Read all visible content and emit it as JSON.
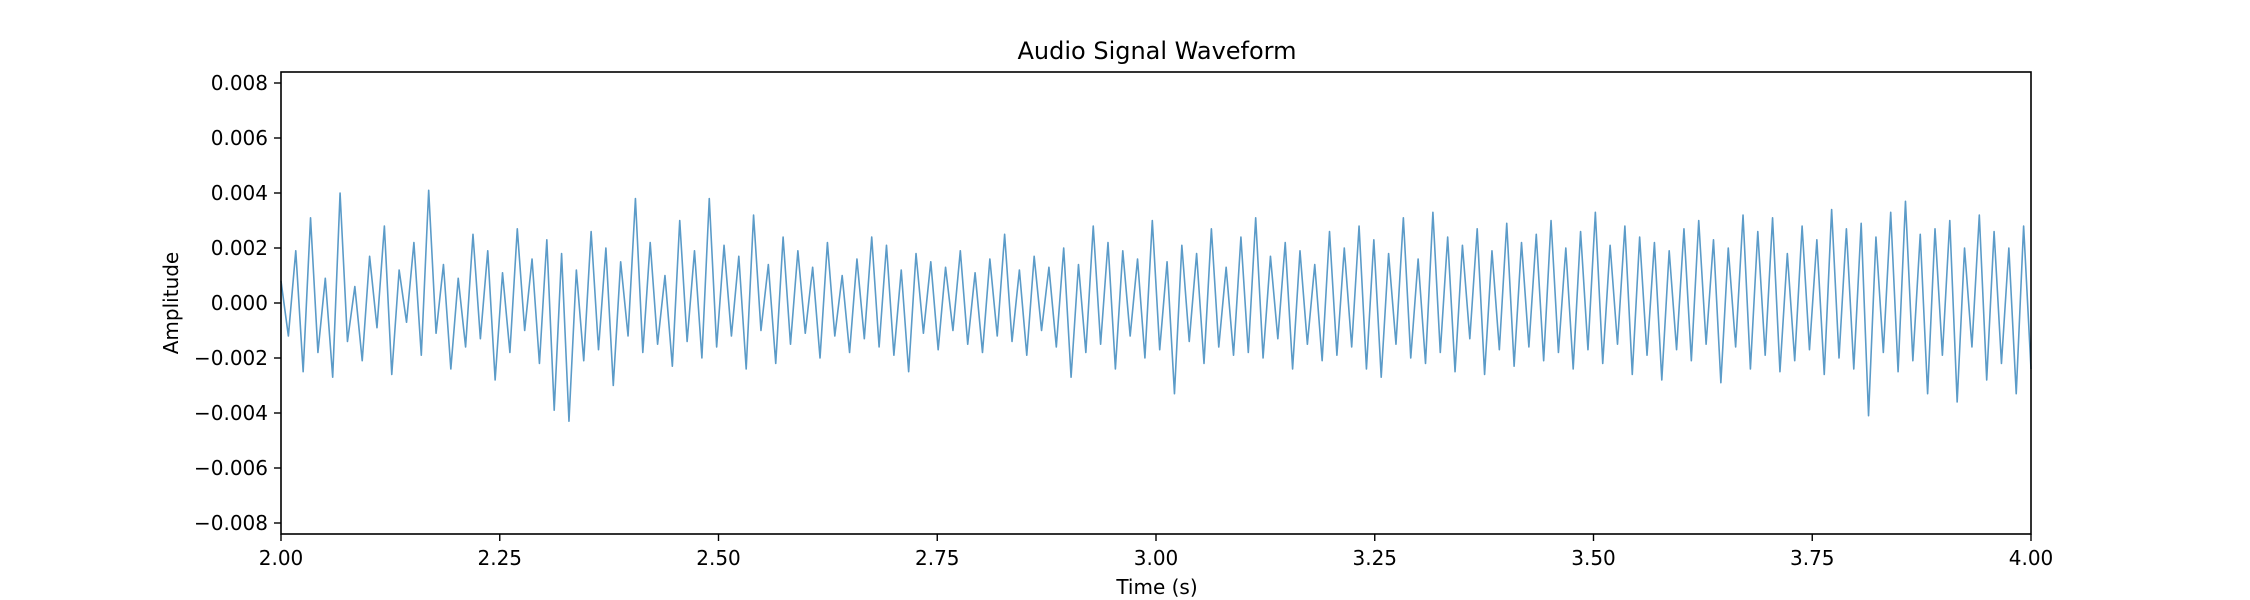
{
  "chart_data": {
    "type": "line",
    "title": "Audio Signal Waveform",
    "xlabel": "Time (s)",
    "ylabel": "Amplitude",
    "xlim": [
      2.0,
      4.0
    ],
    "ylim": [
      -0.0084,
      0.0084
    ],
    "grid": false,
    "legend": "none",
    "x_ticks": [
      2.0,
      2.25,
      2.5,
      2.75,
      3.0,
      3.25,
      3.5,
      3.75,
      4.0
    ],
    "x_tick_labels": [
      "2.00",
      "2.25",
      "2.50",
      "2.75",
      "3.00",
      "3.25",
      "3.50",
      "3.75",
      "4.00"
    ],
    "y_ticks": [
      0.008,
      0.006,
      0.004,
      0.002,
      0.0,
      -0.002,
      -0.004,
      -0.006,
      -0.008
    ],
    "y_tick_labels": [
      "0.008",
      "0.006",
      "0.004",
      "0.002",
      "0.000",
      "−0.002",
      "−0.004",
      "−0.006",
      "−0.008"
    ],
    "series": [
      {
        "color": "#5b9bc8",
        "x_start": 2.0,
        "x_end": 4.0,
        "values": [
          0.0008,
          -0.0012,
          0.0019,
          -0.0025,
          0.0031,
          -0.0018,
          0.0009,
          -0.0027,
          0.004,
          -0.0014,
          0.0006,
          -0.0021,
          0.0017,
          -0.0009,
          0.0028,
          -0.0026,
          0.0012,
          -0.0007,
          0.0022,
          -0.0019,
          0.0041,
          -0.0011,
          0.0014,
          -0.0024,
          0.0009,
          -0.0016,
          0.0025,
          -0.0013,
          0.0019,
          -0.0028,
          0.0011,
          -0.0018,
          0.0027,
          -0.001,
          0.0016,
          -0.0022,
          0.0023,
          -0.0039,
          0.0018,
          -0.0043,
          0.0012,
          -0.0021,
          0.0026,
          -0.0017,
          0.002,
          -0.003,
          0.0015,
          -0.0012,
          0.0038,
          -0.0018,
          0.0022,
          -0.0015,
          0.001,
          -0.0023,
          0.003,
          -0.0014,
          0.0019,
          -0.002,
          0.0038,
          -0.0016,
          0.0021,
          -0.0012,
          0.0017,
          -0.0024,
          0.0032,
          -0.001,
          0.0014,
          -0.0022,
          0.0024,
          -0.0015,
          0.0019,
          -0.0011,
          0.0013,
          -0.002,
          0.0022,
          -0.0012,
          0.001,
          -0.0018,
          0.0016,
          -0.0013,
          0.0024,
          -0.0016,
          0.0021,
          -0.0019,
          0.0012,
          -0.0025,
          0.0018,
          -0.0011,
          0.0015,
          -0.0017,
          0.0013,
          -0.001,
          0.0019,
          -0.0015,
          0.0011,
          -0.0018,
          0.0016,
          -0.0012,
          0.0025,
          -0.0014,
          0.0012,
          -0.0019,
          0.0017,
          -0.001,
          0.0013,
          -0.0016,
          0.002,
          -0.0027,
          0.0014,
          -0.0018,
          0.0028,
          -0.0015,
          0.0022,
          -0.0024,
          0.0019,
          -0.0012,
          0.0016,
          -0.002,
          0.003,
          -0.0017,
          0.0015,
          -0.0033,
          0.0021,
          -0.0014,
          0.0018,
          -0.0022,
          0.0027,
          -0.0016,
          0.0013,
          -0.0019,
          0.0024,
          -0.0018,
          0.0031,
          -0.002,
          0.0017,
          -0.0013,
          0.0022,
          -0.0024,
          0.0019,
          -0.0015,
          0.0014,
          -0.0021,
          0.0026,
          -0.0019,
          0.002,
          -0.0016,
          0.0028,
          -0.0024,
          0.0023,
          -0.0027,
          0.0018,
          -0.0015,
          0.0031,
          -0.002,
          0.0016,
          -0.0022,
          0.0033,
          -0.0018,
          0.0024,
          -0.0025,
          0.0021,
          -0.0013,
          0.0027,
          -0.0026,
          0.0019,
          -0.0017,
          0.0029,
          -0.0023,
          0.0022,
          -0.0016,
          0.0025,
          -0.0021,
          0.003,
          -0.0018,
          0.002,
          -0.0024,
          0.0026,
          -0.0017,
          0.0033,
          -0.0022,
          0.0021,
          -0.0015,
          0.0028,
          -0.0026,
          0.0024,
          -0.0019,
          0.0022,
          -0.0028,
          0.0019,
          -0.0017,
          0.0027,
          -0.0021,
          0.003,
          -0.0015,
          0.0023,
          -0.0029,
          0.002,
          -0.0016,
          0.0032,
          -0.0024,
          0.0026,
          -0.0019,
          0.0031,
          -0.0025,
          0.0018,
          -0.0021,
          0.0028,
          -0.0017,
          0.0023,
          -0.0026,
          0.0034,
          -0.002,
          0.0027,
          -0.0024,
          0.0029,
          -0.0041,
          0.0024,
          -0.0018,
          0.0033,
          -0.0025,
          0.0037,
          -0.0021,
          0.0025,
          -0.0033,
          0.0027,
          -0.0019,
          0.003,
          -0.0036,
          0.002,
          -0.0016,
          0.0032,
          -0.0028,
          0.0026,
          -0.0022,
          0.002,
          -0.0033,
          0.0028,
          -0.0024
        ]
      }
    ]
  }
}
